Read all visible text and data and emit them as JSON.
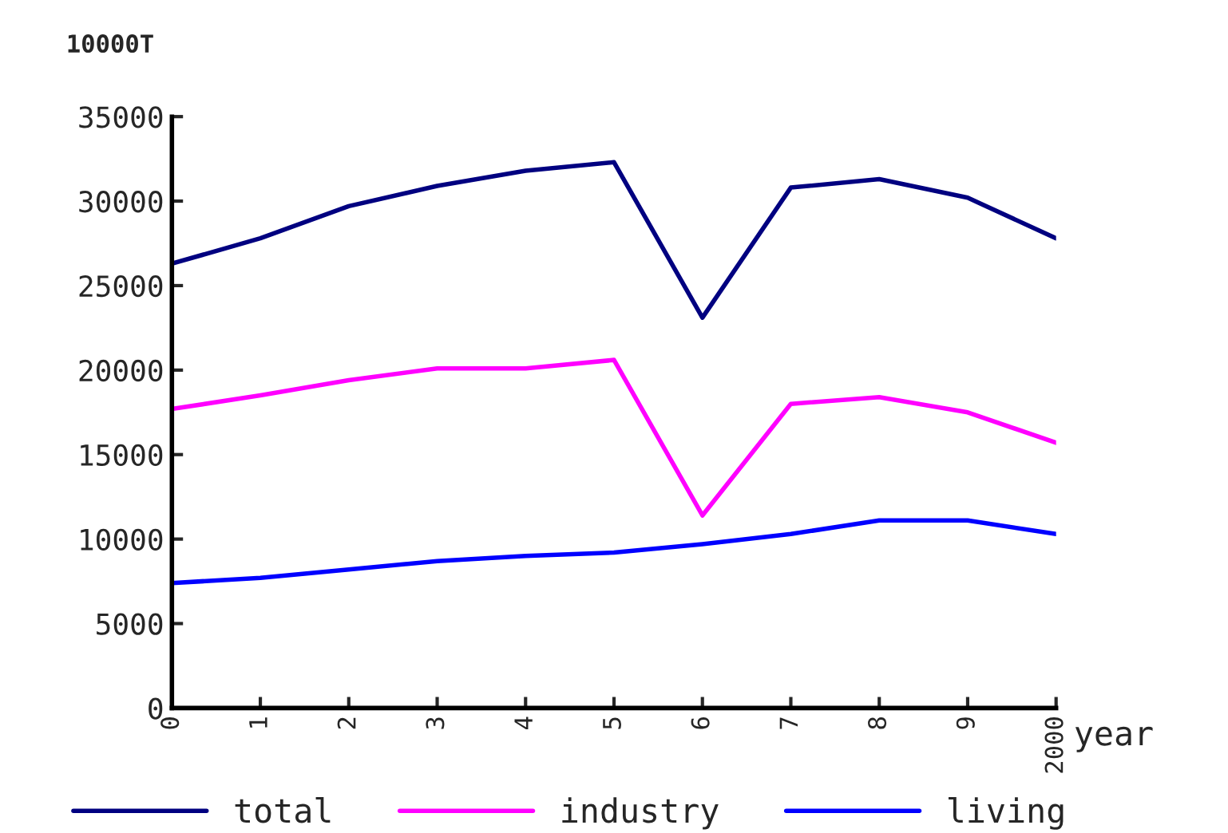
{
  "chart_data": {
    "type": "line",
    "ylabel": "10000T",
    "xlabel": "year",
    "categories": [
      "0",
      "1",
      "2",
      "3",
      "4",
      "5",
      "6",
      "7",
      "8",
      "9",
      "2000"
    ],
    "series": [
      {
        "name": "total",
        "color": "#000080",
        "values": [
          26300,
          27800,
          29700,
          30900,
          31800,
          32300,
          23100,
          30800,
          31300,
          30200,
          27800
        ]
      },
      {
        "name": "industry",
        "color": "#ff00ff",
        "values": [
          17700,
          18500,
          19400,
          20100,
          20100,
          20600,
          11400,
          18000,
          18400,
          17500,
          15700
        ]
      },
      {
        "name": "living",
        "color": "#0000ff",
        "values": [
          7400,
          7700,
          8200,
          8700,
          9000,
          9200,
          9700,
          10300,
          11100,
          11100,
          10300
        ]
      }
    ],
    "ylim": [
      0,
      35000
    ],
    "yticks": [
      0,
      5000,
      10000,
      15000,
      20000,
      25000,
      30000,
      35000
    ],
    "grid": false,
    "legend": "bottom",
    "marker": "none",
    "line_style": "solid"
  }
}
